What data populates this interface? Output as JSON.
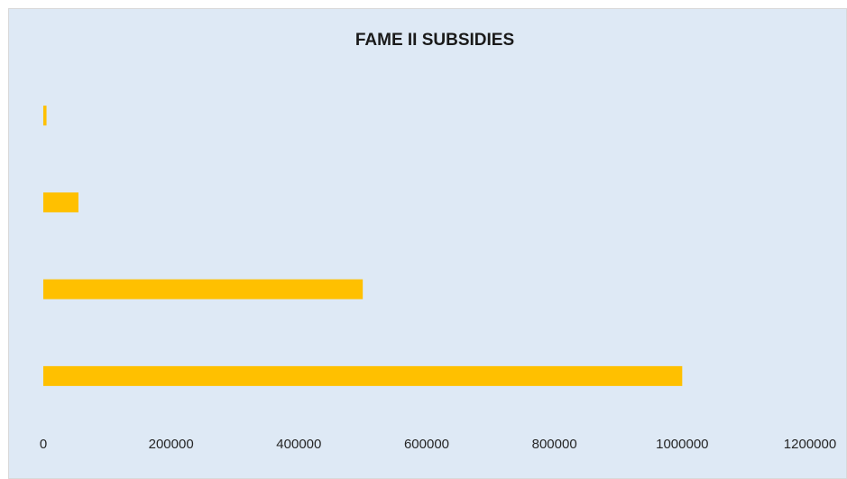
{
  "chart_data": {
    "type": "bar",
    "orientation": "horizontal",
    "title": "FAME II SUBSIDIES",
    "xlabel": "",
    "ylabel": "",
    "categories": [
      "",
      "",
      "",
      ""
    ],
    "values": [
      1000000,
      500000,
      55000,
      5000
    ],
    "xlim": [
      0,
      1200000
    ],
    "x_ticks": [
      "0",
      "200000",
      "400000",
      "600000",
      "800000",
      "1000000",
      "1200000"
    ],
    "grid": false,
    "legend": "none",
    "bar_color": "#FFC000",
    "plot_background": "#DEE9F5",
    "border_color": "#D9D9D9"
  }
}
